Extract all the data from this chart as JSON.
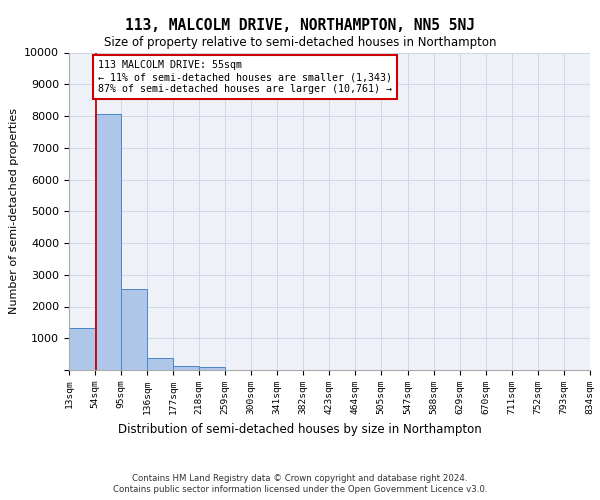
{
  "title": "113, MALCOLM DRIVE, NORTHAMPTON, NN5 5NJ",
  "subtitle": "Size of property relative to semi-detached houses in Northampton",
  "xlabel": "Distribution of semi-detached houses by size in Northampton",
  "ylabel": "Number of semi-detached properties",
  "property_size": 55,
  "property_label": "113 MALCOLM DRIVE: 55sqm",
  "pct_smaller": 11,
  "count_smaller": "1,343",
  "pct_larger": 87,
  "count_larger": "10,761",
  "bin_edges": [
    13,
    54,
    95,
    136,
    177,
    218,
    259,
    300,
    341,
    382,
    423,
    464,
    505,
    547,
    588,
    629,
    670,
    711,
    752,
    793,
    834
  ],
  "bar_heights": [
    1320,
    8050,
    2540,
    370,
    130,
    80,
    0,
    0,
    0,
    0,
    0,
    0,
    0,
    0,
    0,
    0,
    0,
    0,
    0,
    0
  ],
  "bar_color": "#aec6e8",
  "bar_edge_color": "#4a86c8",
  "vline_color": "#cc0000",
  "vline_x": 55,
  "ylim": [
    0,
    10000
  ],
  "yticks": [
    0,
    1000,
    2000,
    3000,
    4000,
    5000,
    6000,
    7000,
    8000,
    9000,
    10000
  ],
  "tick_labels": [
    "13sqm",
    "54sqm",
    "95sqm",
    "136sqm",
    "177sqm",
    "218sqm",
    "259sqm",
    "300sqm",
    "341sqm",
    "382sqm",
    "423sqm",
    "464sqm",
    "505sqm",
    "547sqm",
    "588sqm",
    "629sqm",
    "670sqm",
    "711sqm",
    "752sqm",
    "793sqm",
    "834sqm"
  ],
  "grid_color": "#d0d8e8",
  "bg_color": "#eef2f8",
  "footer_line1": "Contains HM Land Registry data © Crown copyright and database right 2024.",
  "footer_line2": "Contains public sector information licensed under the Open Government Licence v3.0."
}
